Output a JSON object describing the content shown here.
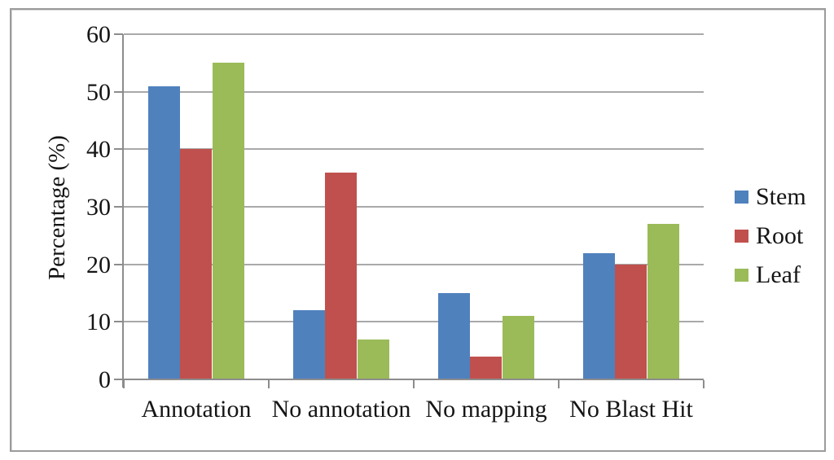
{
  "chart_data": {
    "type": "bar",
    "title": "",
    "xlabel": "",
    "ylabel": "Percentage (%)",
    "categories": [
      "Annotation",
      "No annotation",
      "No mapping",
      "No Blast Hit"
    ],
    "series": [
      {
        "name": "Stem",
        "color": "#4F81BD",
        "values": [
          51,
          12,
          15,
          22
        ]
      },
      {
        "name": "Root",
        "color": "#C0504D",
        "values": [
          40,
          36,
          4,
          20
        ]
      },
      {
        "name": "Leaf",
        "color": "#9BBB59",
        "values": [
          55,
          7,
          11,
          27
        ]
      }
    ],
    "ylim": [
      0,
      60
    ],
    "yticks": [
      0,
      10,
      20,
      30,
      40,
      50,
      60
    ],
    "grid": true,
    "legend_position": "right",
    "bar_gap_percent": 150
  },
  "style_colors": {
    "gridline": "#a9a9a9",
    "axis": "#8c8c8c",
    "figure_border": "#9b9b9b",
    "text": "#151515",
    "background": "#ffffff"
  }
}
